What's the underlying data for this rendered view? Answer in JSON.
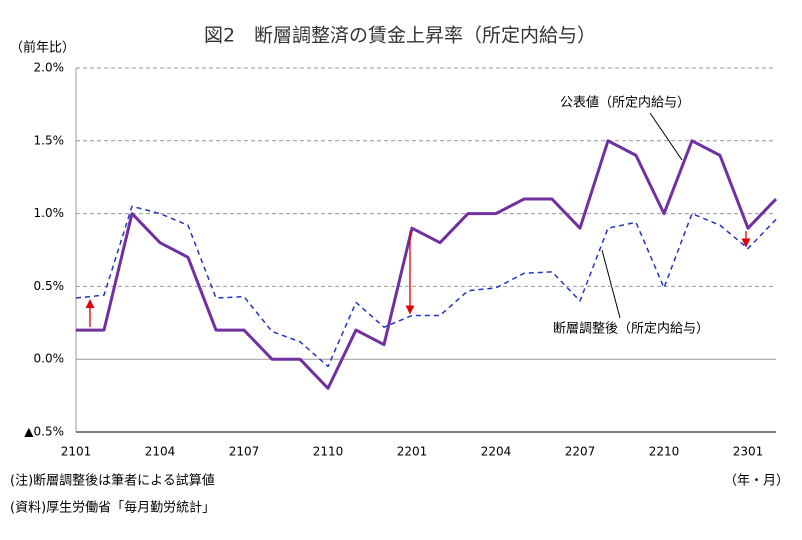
{
  "chart_data": {
    "type": "line",
    "title": "図2　断層調整済の賃金上昇率（所定内給与）",
    "y_unit": "（前年比）",
    "x_unit": "（年・月）",
    "notes": [
      "(注)断層調整後は筆者による試算値",
      "(資料)厚生労働省「毎月勤労統計」"
    ],
    "categories": [
      "2101",
      null,
      null,
      "2104",
      null,
      null,
      "2107",
      null,
      null,
      "2110",
      null,
      null,
      "2201",
      null,
      null,
      "2204",
      null,
      null,
      "2207",
      null,
      null,
      "2210",
      null,
      null,
      "2301",
      null
    ],
    "series": [
      {
        "name": "公表値（所定内給与）",
        "color": "#7030a0",
        "style": "solid",
        "values": [
          0.2,
          0.2,
          1.0,
          0.8,
          0.7,
          0.2,
          0.2,
          0.0,
          0.0,
          -0.2,
          0.2,
          0.1,
          0.9,
          0.8,
          1.0,
          1.0,
          1.1,
          1.1,
          0.9,
          1.5,
          1.4,
          1.0,
          1.5,
          1.4,
          0.9,
          1.1
        ]
      },
      {
        "name": "断層調整後（所定内給与）",
        "color": "#2036c0",
        "style": "dashed",
        "values": [
          0.42,
          0.44,
          1.05,
          1.0,
          0.92,
          0.42,
          0.43,
          0.19,
          0.12,
          -0.05,
          0.39,
          0.22,
          0.3,
          0.3,
          0.47,
          0.49,
          0.59,
          0.6,
          0.4,
          0.9,
          0.94,
          0.49,
          1.0,
          0.92,
          0.76,
          0.96
        ]
      }
    ],
    "arrow_indices": [
      0,
      12,
      24
    ],
    "arrow_color": "#e00000",
    "ylim": [
      -0.5,
      2.0
    ],
    "yticks": [
      {
        "value": -0.5,
        "label": "▲0.5%"
      },
      {
        "value": 0.0,
        "label": "0.0%"
      },
      {
        "value": 0.5,
        "label": "0.5%"
      },
      {
        "value": 1.0,
        "label": "1.0%"
      },
      {
        "value": 1.5,
        "label": "1.5%"
      },
      {
        "value": 2.0,
        "label": "2.0%"
      }
    ],
    "grid": true
  }
}
